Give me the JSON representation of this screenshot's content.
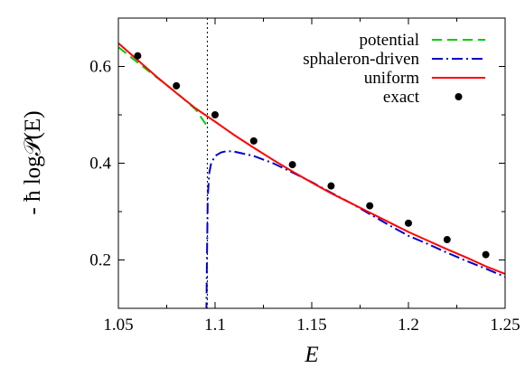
{
  "chart_data": {
    "type": "line",
    "xlabel": "E",
    "ylabel": "- ħ log𝒫(E)",
    "xlim": [
      1.05,
      1.25
    ],
    "ylim": [
      0.1,
      0.7
    ],
    "x_ticks": [
      1.05,
      1.1,
      1.15,
      1.2,
      1.25
    ],
    "x_tick_labels": [
      "1.05",
      "1.1",
      "1.15",
      "1.2",
      "1.25"
    ],
    "y_ticks": [
      0.2,
      0.4,
      0.6
    ],
    "y_tick_labels": [
      "0.2",
      "0.4",
      "0.6"
    ],
    "grid": false,
    "legend_position": "top-right",
    "vertical_marker": {
      "x": 1.096,
      "style": "dotted",
      "color": "#000000"
    },
    "series": [
      {
        "name": "potential",
        "style": "dashed",
        "color": "#00cc00",
        "x": [
          1.05,
          1.06,
          1.07,
          1.08,
          1.09,
          1.096
        ],
        "y": [
          0.64,
          0.608,
          0.577,
          0.546,
          0.511,
          0.476
        ]
      },
      {
        "name": "sphaleron-driven",
        "style": "dash-dot",
        "color": "#0000cc",
        "x": [
          1.0955,
          1.0958,
          1.0962,
          1.097,
          1.098,
          1.1,
          1.103,
          1.106,
          1.11,
          1.12,
          1.13,
          1.14,
          1.15,
          1.16,
          1.17,
          1.18,
          1.19,
          1.2,
          1.21,
          1.22,
          1.23,
          1.24,
          1.25
        ],
        "y": [
          0.09,
          0.2,
          0.33,
          0.38,
          0.4,
          0.415,
          0.422,
          0.425,
          0.424,
          0.415,
          0.4,
          0.381,
          0.361,
          0.339,
          0.318,
          0.295,
          0.272,
          0.25,
          0.233,
          0.215,
          0.198,
          0.182,
          0.165
        ]
      },
      {
        "name": "uniform",
        "style": "solid",
        "color": "#ff0000",
        "x": [
          1.05,
          1.06,
          1.07,
          1.08,
          1.09,
          1.1,
          1.11,
          1.12,
          1.13,
          1.14,
          1.15,
          1.16,
          1.17,
          1.18,
          1.19,
          1.2,
          1.21,
          1.22,
          1.23,
          1.24,
          1.25
        ],
        "y": [
          0.648,
          0.613,
          0.578,
          0.545,
          0.513,
          0.486,
          0.458,
          0.432,
          0.407,
          0.383,
          0.36,
          0.338,
          0.318,
          0.298,
          0.278,
          0.258,
          0.24,
          0.222,
          0.205,
          0.187,
          0.171
        ]
      },
      {
        "name": "exact",
        "style": "points",
        "color": "#000000",
        "x": [
          1.06,
          1.08,
          1.1,
          1.12,
          1.14,
          1.16,
          1.18,
          1.2,
          1.22,
          1.24
        ],
        "y": [
          0.622,
          0.56,
          0.5,
          0.446,
          0.397,
          0.353,
          0.312,
          0.276,
          0.242,
          0.211
        ]
      }
    ]
  }
}
